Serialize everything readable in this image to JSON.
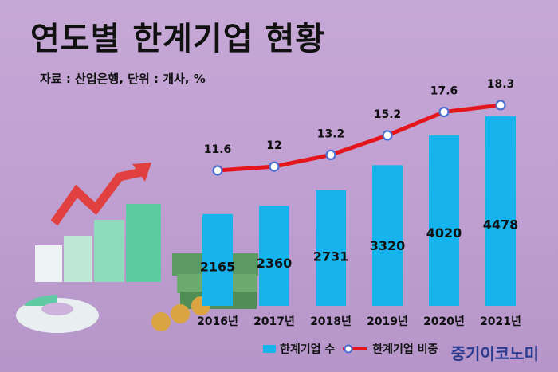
{
  "title": "연도별 한계기업 현황",
  "source": "자료 : 산업은행, 단위 : 개사, %",
  "brand": "중기이코노미",
  "colors": {
    "bar": "#16b3ec",
    "line": "#e5161b",
    "marker_fill": "#ffffff",
    "marker_stroke": "#4a6fd0",
    "brand": "#2a3a8f"
  },
  "legend": {
    "bar_label": "한계기업 수",
    "line_label": "한계기업 비중"
  },
  "chart_data": {
    "type": "bar",
    "categories": [
      "2016년",
      "2017년",
      "2018년",
      "2019년",
      "2020년",
      "2021년"
    ],
    "series": [
      {
        "name": "한계기업 수",
        "type": "bar",
        "values": [
          2165,
          2360,
          2731,
          3320,
          4020,
          4478
        ]
      },
      {
        "name": "한계기업 비중",
        "type": "line",
        "values": [
          11.6,
          12,
          13.2,
          15.2,
          17.6,
          18.3
        ]
      }
    ],
    "value_labels": [
      "2165",
      "2360",
      "2731",
      "3320",
      "4020",
      "4478"
    ],
    "line_labels": [
      "11.6",
      "12",
      "13.2",
      "15.2",
      "17.6",
      "18.3"
    ],
    "legend_position": "bottom"
  }
}
